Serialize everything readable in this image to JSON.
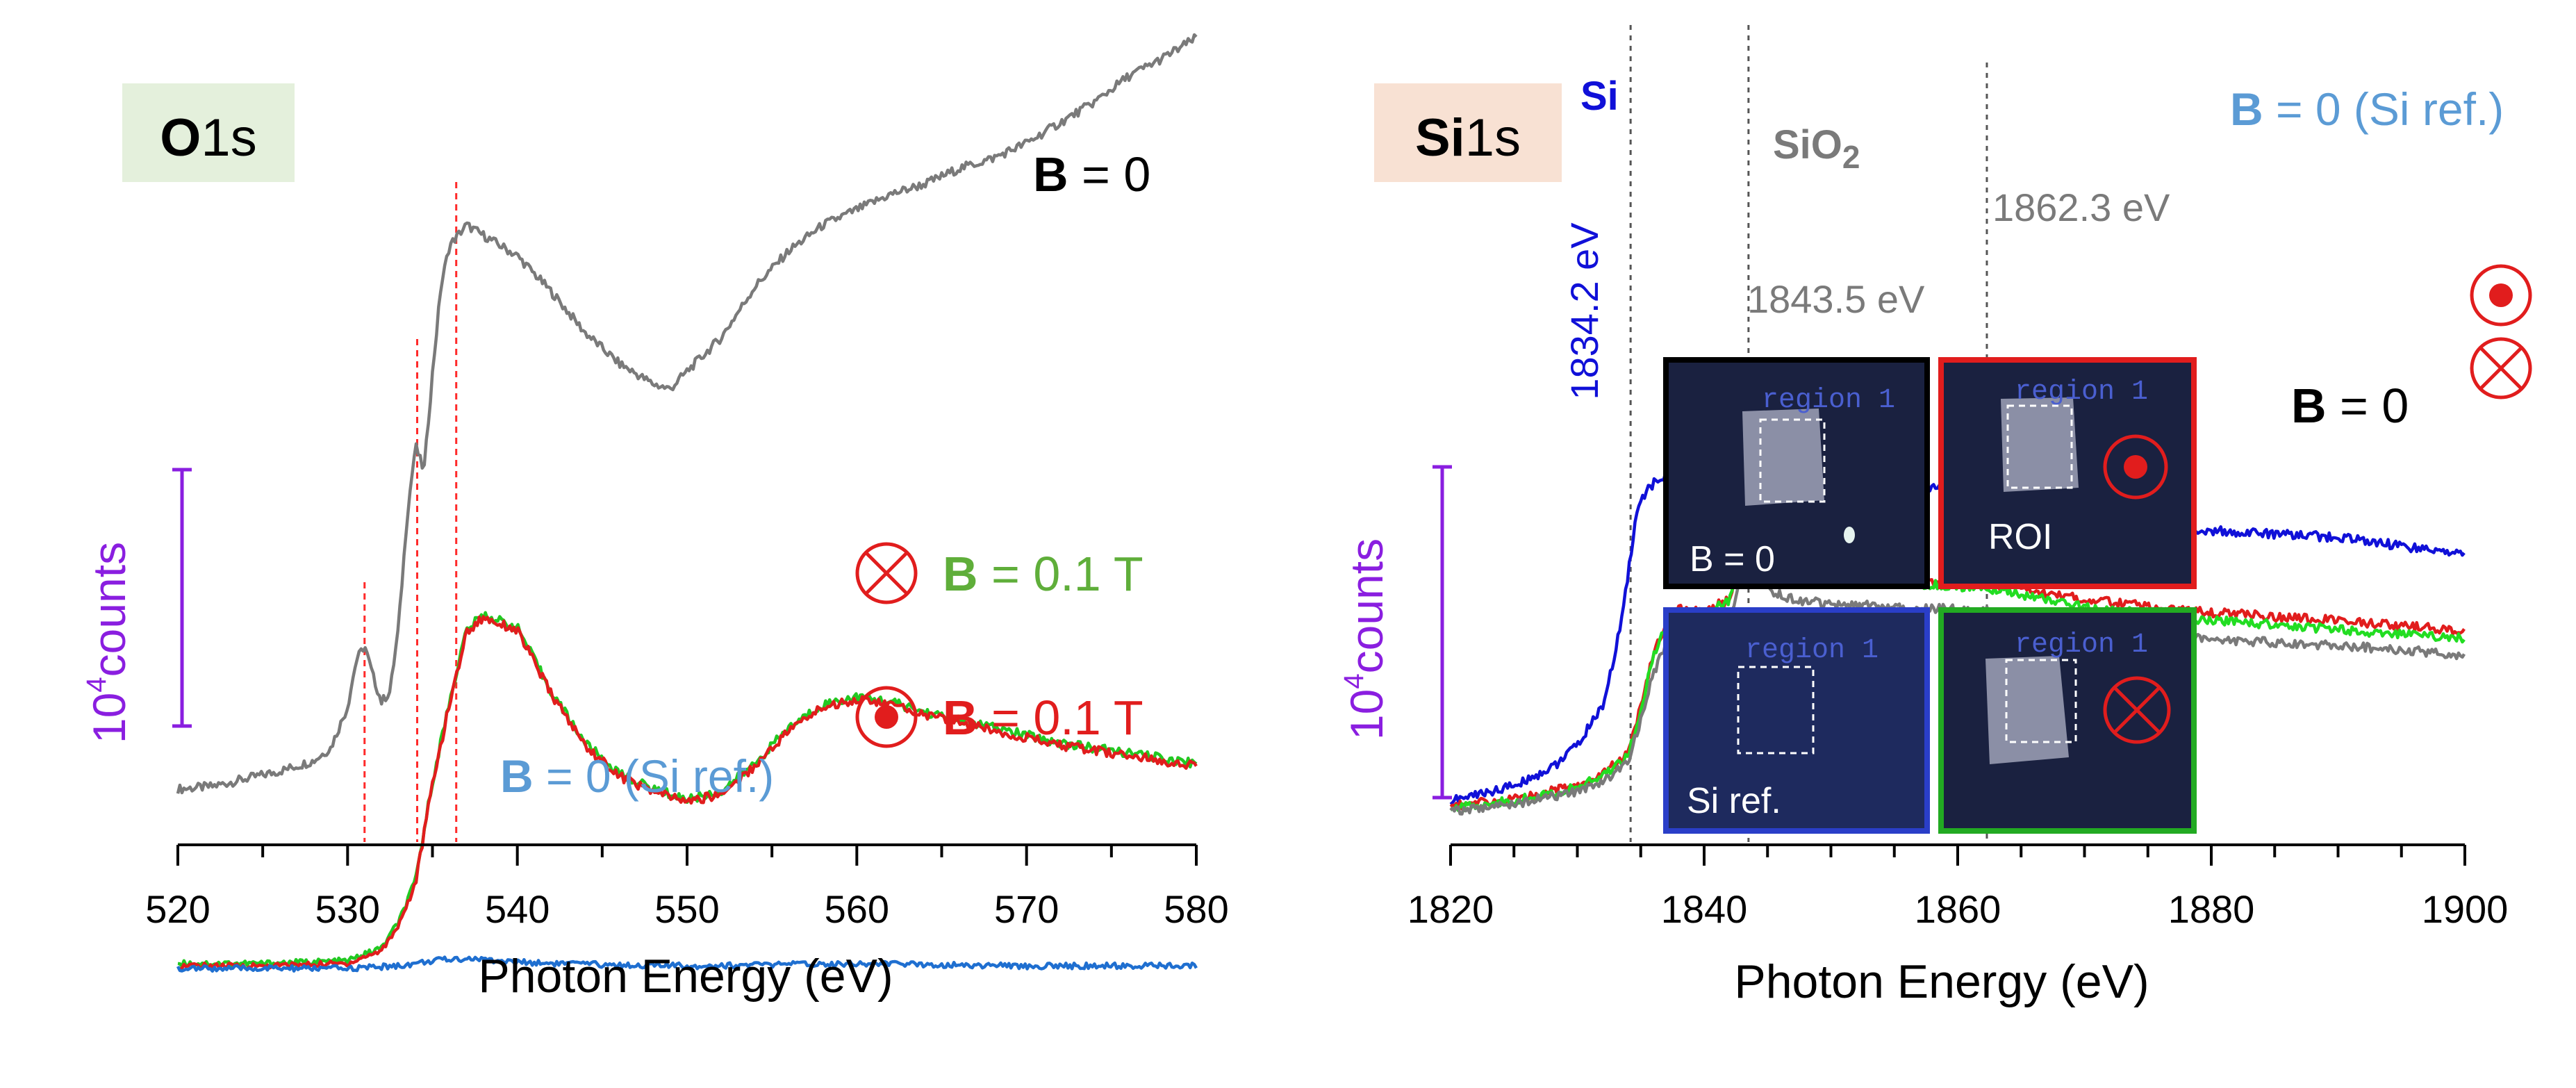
{
  "chart_data": [
    {
      "type": "line",
      "panel": "O1s",
      "title": {
        "bold": "O",
        "rest": "1s"
      },
      "xlabel": "Photon  Energy (eV)",
      "ylabel": {
        "exp": "4",
        "base": "10",
        "unit": "counts"
      },
      "xlim": [
        520,
        580
      ],
      "x_ticks": [
        "520",
        "530",
        "540",
        "550",
        "560",
        "570",
        "580"
      ],
      "grid": false,
      "vlines_eV": [
        531.0,
        534.1,
        536.4
      ],
      "series": [
        {
          "name": "B = 0",
          "color": "#7a7a7a",
          "x": [
            520,
            522,
            524,
            526,
            528,
            529,
            530,
            530.5,
            531,
            531.5,
            532,
            532.5,
            533,
            533.5,
            534,
            534.5,
            535,
            535.5,
            536,
            537,
            538,
            540,
            542,
            544,
            546,
            548,
            549,
            550,
            552,
            554,
            556,
            558,
            560,
            562,
            564,
            566,
            568,
            570,
            572,
            574,
            576,
            578,
            580
          ],
          "y": [
            0.12,
            0.13,
            0.16,
            0.19,
            0.23,
            0.28,
            0.44,
            0.62,
            0.68,
            0.56,
            0.46,
            0.5,
            0.75,
            1.18,
            1.46,
            1.36,
            1.74,
            2.08,
            2.24,
            2.32,
            2.28,
            2.2,
            2.06,
            1.9,
            1.78,
            1.7,
            1.68,
            1.75,
            1.88,
            2.08,
            2.22,
            2.32,
            2.38,
            2.44,
            2.48,
            2.54,
            2.58,
            2.64,
            2.72,
            2.8,
            2.9,
            2.97,
            3.05
          ]
        },
        {
          "name": "B = 0.1 T (into page)",
          "color": "#22c922",
          "x": [
            520,
            525,
            530,
            532,
            533,
            534,
            535,
            536,
            537,
            538,
            540,
            542,
            544,
            546,
            548,
            550,
            552,
            554,
            556,
            558,
            560,
            562,
            564,
            566,
            568,
            570,
            572,
            574,
            576,
            578,
            580
          ],
          "y": [
            -0.56,
            -0.56,
            -0.55,
            -0.5,
            -0.4,
            -0.24,
            0.15,
            0.46,
            0.74,
            0.8,
            0.75,
            0.5,
            0.3,
            0.18,
            0.12,
            0.08,
            0.11,
            0.22,
            0.36,
            0.45,
            0.48,
            0.46,
            0.42,
            0.39,
            0.36,
            0.33,
            0.3,
            0.28,
            0.26,
            0.24,
            0.22
          ]
        },
        {
          "name": "B = 0.1 T (out of page)",
          "color": "#e11d1d",
          "x": [
            520,
            525,
            530,
            532,
            533,
            534,
            535,
            536,
            537,
            538,
            540,
            542,
            544,
            546,
            548,
            550,
            552,
            554,
            556,
            558,
            560,
            562,
            564,
            566,
            568,
            570,
            572,
            574,
            576,
            578,
            580
          ],
          "y": [
            -0.57,
            -0.57,
            -0.56,
            -0.51,
            -0.41,
            -0.25,
            0.14,
            0.45,
            0.73,
            0.79,
            0.74,
            0.49,
            0.29,
            0.17,
            0.11,
            0.07,
            0.1,
            0.21,
            0.35,
            0.44,
            0.47,
            0.45,
            0.41,
            0.38,
            0.35,
            0.32,
            0.29,
            0.27,
            0.25,
            0.23,
            0.21
          ]
        },
        {
          "name": "B = 0 (Si ref.)",
          "color": "#1f6fd0",
          "x": [
            520,
            530,
            533,
            535,
            537,
            540,
            545,
            550,
            555,
            560,
            565,
            570,
            575,
            580
          ],
          "y": [
            -0.58,
            -0.58,
            -0.57,
            -0.55,
            -0.54,
            -0.555,
            -0.565,
            -0.57,
            -0.565,
            -0.56,
            -0.565,
            -0.57,
            -0.57,
            -0.57
          ]
        }
      ],
      "annotations": [
        {
          "bold": "B",
          "rest": " = 0",
          "color": "#000000"
        },
        {
          "bold": "B",
          "rest": " = 0.1 T",
          "color": "#5fae3a",
          "symbol": "into page"
        },
        {
          "bold": "B",
          "rest": " = 0.1 T",
          "color": "#e11d1d",
          "symbol": "out of page"
        },
        {
          "bold": "B",
          "rest": " = 0 (Si ref.)",
          "color": "#5b9bd5"
        }
      ]
    },
    {
      "type": "line",
      "panel": "Si1s",
      "title": {
        "bold": "Si",
        "rest": "1s"
      },
      "xlabel": "Photon Energy (eV)",
      "ylabel": {
        "exp": "4",
        "base": "10",
        "unit": "counts"
      },
      "xlim": [
        1820,
        1900
      ],
      "x_ticks": [
        "1820",
        "1840",
        "1860",
        "1880",
        "1900"
      ],
      "grid": false,
      "vlines_eV": [
        1834.2,
        1843.5,
        1862.3
      ],
      "series": [
        {
          "name": "B = 0 (Si ref.)",
          "color": "#1010d8",
          "x": [
            1820,
            1825,
            1828,
            1830,
            1832,
            1833,
            1834,
            1834.5,
            1835,
            1836,
            1838,
            1840,
            1842,
            1844,
            1846,
            1848,
            1850,
            1852,
            1854,
            1856,
            1858,
            1860,
            1862,
            1864,
            1866,
            1868,
            1870,
            1872,
            1874,
            1876,
            1878,
            1880,
            1882,
            1884,
            1886,
            1888,
            1890,
            1892,
            1894,
            1896,
            1898,
            1900
          ],
          "y": [
            0.05,
            0.2,
            0.38,
            0.6,
            1.0,
            1.5,
            2.3,
            2.75,
            3.05,
            3.2,
            3.32,
            3.3,
            3.35,
            3.3,
            3.4,
            3.45,
            3.38,
            3.3,
            3.28,
            3.2,
            3.15,
            3.13,
            3.08,
            3.02,
            2.97,
            2.93,
            2.88,
            2.83,
            2.79,
            2.76,
            2.74,
            2.73,
            2.72,
            2.71,
            2.69,
            2.68,
            2.66,
            2.64,
            2.6,
            2.56,
            2.53,
            2.5
          ]
        },
        {
          "name": "B = 0.1 T (out of page)",
          "color": "#e11d1d",
          "x": [
            1820,
            1825,
            1830,
            1832,
            1834,
            1835,
            1836,
            1837,
            1838,
            1840,
            1841,
            1842,
            1843,
            1843.8,
            1844.5,
            1845.5,
            1847,
            1850,
            1855,
            1860,
            1862,
            1865,
            1870,
            1875,
            1880,
            1885,
            1890,
            1895,
            1900
          ],
          "y": [
            0.0,
            0.07,
            0.2,
            0.32,
            0.52,
            0.98,
            1.5,
            1.8,
            1.95,
            1.92,
            2.0,
            2.05,
            2.5,
            2.78,
            2.55,
            2.38,
            2.3,
            2.25,
            2.22,
            2.2,
            2.2,
            2.15,
            2.05,
            1.98,
            1.92,
            1.88,
            1.84,
            1.79,
            1.74
          ]
        },
        {
          "name": "B = 0.1 T (into page)",
          "color": "#22dd22",
          "x": [
            1820,
            1825,
            1830,
            1832,
            1834,
            1835,
            1836,
            1837,
            1838,
            1840,
            1841,
            1842,
            1843,
            1843.8,
            1844.5,
            1845.5,
            1847,
            1850,
            1855,
            1860,
            1862,
            1865,
            1870,
            1875,
            1880,
            1885,
            1890,
            1895,
            1900
          ],
          "y": [
            -0.02,
            0.05,
            0.18,
            0.3,
            0.5,
            0.96,
            1.48,
            1.78,
            1.92,
            1.9,
            1.98,
            2.04,
            2.55,
            2.85,
            2.6,
            2.42,
            2.32,
            2.26,
            2.22,
            2.18,
            2.17,
            2.1,
            1.98,
            1.9,
            1.84,
            1.8,
            1.75,
            1.7,
            1.66
          ]
        },
        {
          "name": "B = 0",
          "color": "#7a7a7a",
          "x": [
            1820,
            1825,
            1830,
            1832,
            1834,
            1835,
            1836,
            1837,
            1838,
            1840,
            1841,
            1842,
            1843,
            1843.8,
            1844.5,
            1845.5,
            1847,
            1850,
            1855,
            1860,
            1862,
            1865,
            1870,
            1875,
            1880,
            1885,
            1890,
            1895,
            1900
          ],
          "y": [
            -0.06,
            0.02,
            0.14,
            0.25,
            0.42,
            0.85,
            1.32,
            1.6,
            1.74,
            1.72,
            1.8,
            1.86,
            2.3,
            2.6,
            2.3,
            2.12,
            2.05,
            2.0,
            1.98,
            1.95,
            1.94,
            1.86,
            1.76,
            1.7,
            1.66,
            1.62,
            1.59,
            1.55,
            1.5
          ]
        }
      ],
      "annotations": [
        {
          "text": "Si",
          "color": "#1010d8"
        },
        {
          "text": "SiO",
          "sub": "2",
          "color": "#7a7a7a"
        },
        {
          "text": "1834.2 eV",
          "color": "#1010d8"
        },
        {
          "text": "1843.5 eV",
          "color": "#7a7a7a"
        },
        {
          "text": "1862.3 eV",
          "color": "#7a7a7a"
        },
        {
          "bold": "B",
          "rest": " = 0 (Si ref.)",
          "color": "#5b9bd5"
        },
        {
          "bold": "B",
          "rest": " = 0",
          "color": "#000000"
        }
      ],
      "insets": [
        {
          "label": "B = 0",
          "border": "#000000",
          "region_text": "region 1",
          "symbol": "none"
        },
        {
          "label": "ROI",
          "border": "#e11d1d",
          "region_text": "region 1",
          "symbol": "out of page"
        },
        {
          "label": "Si ref.",
          "border": "#2a3ec8",
          "region_text": "region 1",
          "symbol": "none"
        },
        {
          "label": "",
          "border": "#22aa22",
          "region_text": "region 1",
          "symbol": "into page"
        }
      ]
    }
  ],
  "colors": {
    "scale_bar": "#8a1ee0",
    "dashed_left": "#ff2a2a",
    "dashed_right": "#555555"
  }
}
